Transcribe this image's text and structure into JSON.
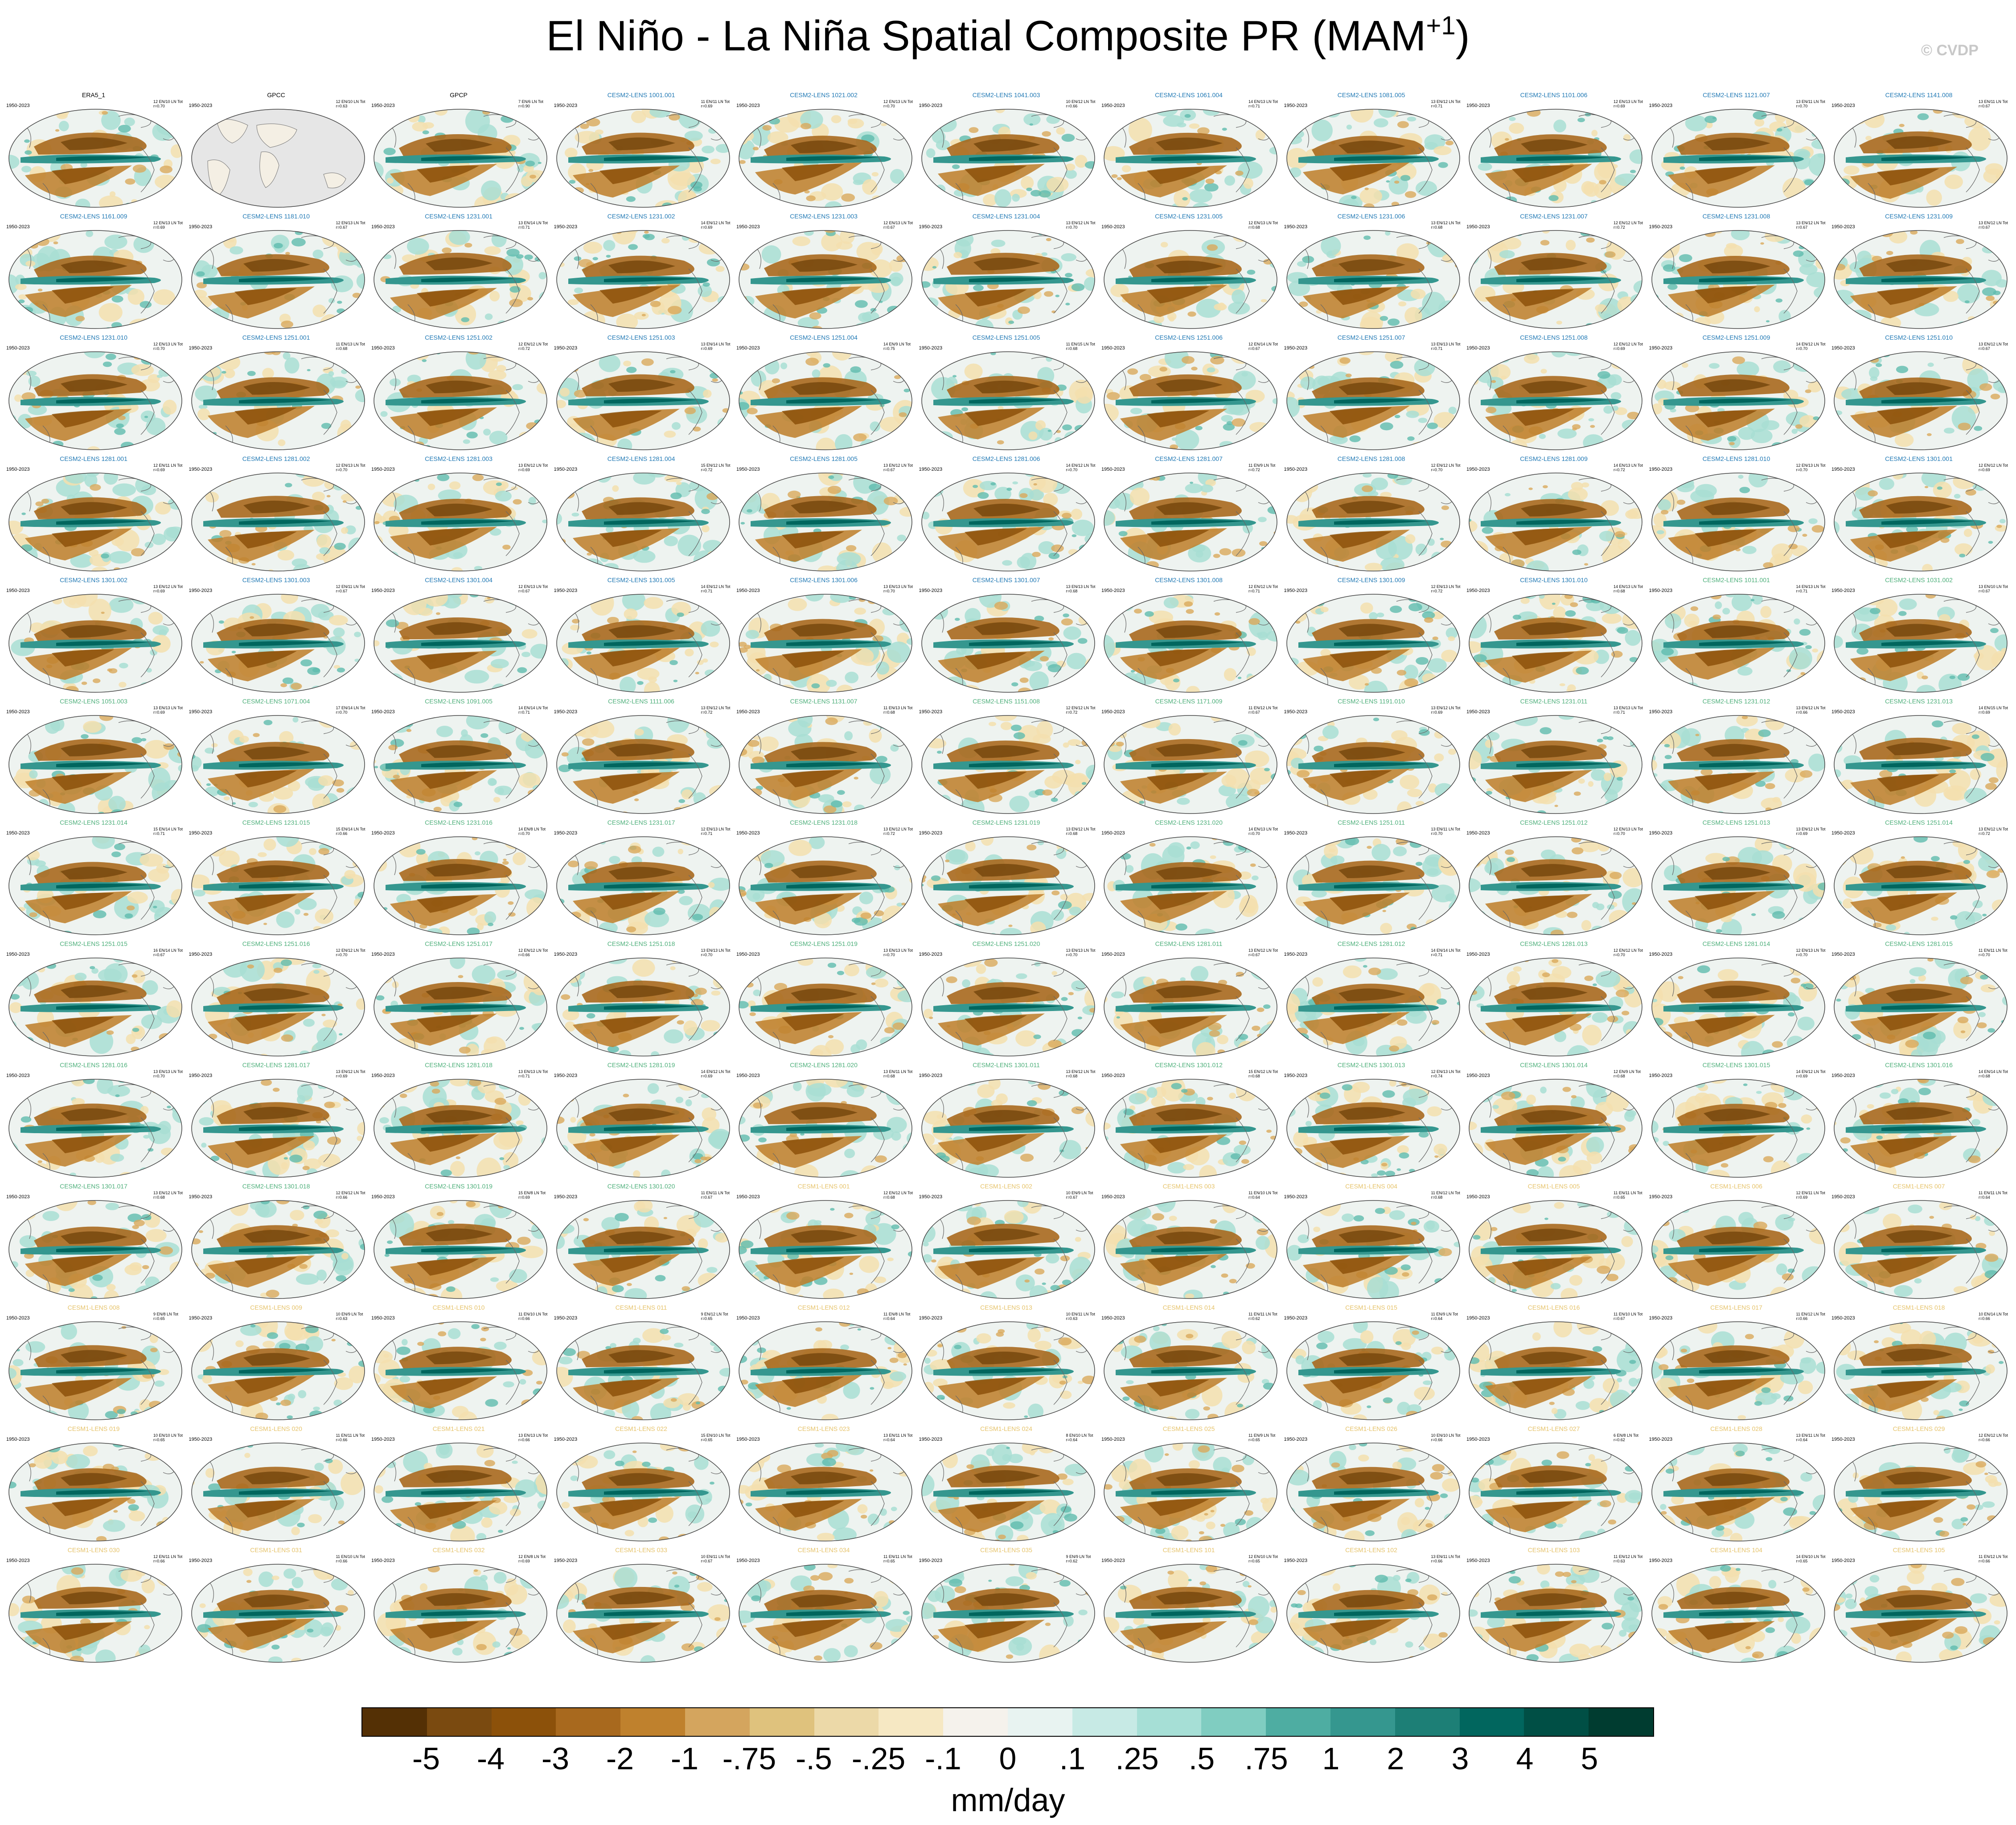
{
  "title": "El Niño - La Niña Spatial Composite PR (MAM",
  "title_superscript": "+1",
  "title_close": ")",
  "copyright": "© CVDP",
  "year_range": "1950-2023",
  "group_colors": {
    "obs": "#000000",
    "cesm2_smbb": "#1f78b4",
    "cesm2_cmip6": "#4daf7a",
    "cesm1": "#e6c36a"
  },
  "panels": [
    {
      "title": "ERA5_1",
      "group": "obs",
      "count": "12 EN/10 LN Tot",
      "r": "r=0.70"
    },
    {
      "title": "GPCC",
      "group": "obs",
      "count": "12 EN/10 LN Tot",
      "r": "r=0.63",
      "land_only": true
    },
    {
      "title": "GPCP",
      "group": "obs",
      "count": "7 EN/6 LN Tot",
      "r": "r=0.90"
    },
    {
      "title": "CESM2-LENS 1001.001",
      "group": "cesm2_smbb",
      "count": "11 EN/11 LN Tot",
      "r": "r=0.69"
    },
    {
      "title": "CESM2-LENS 1021.002",
      "group": "cesm2_smbb",
      "count": "12 EN/13 LN Tot",
      "r": "r=0.70"
    },
    {
      "title": "CESM2-LENS 1041.003",
      "group": "cesm2_smbb",
      "count": "10 EN/12 LN Tot",
      "r": "r=0.66"
    },
    {
      "title": "CESM2-LENS 1061.004",
      "group": "cesm2_smbb",
      "count": "14 EN/13 LN Tot",
      "r": "r=0.71"
    },
    {
      "title": "CESM2-LENS 1081.005",
      "group": "cesm2_smbb",
      "count": "13 EN/12 LN Tot",
      "r": "r=0.71"
    },
    {
      "title": "CESM2-LENS 1101.006",
      "group": "cesm2_smbb",
      "count": "12 EN/13 LN Tot",
      "r": "r=0.69"
    },
    {
      "title": "CESM2-LENS 1121.007",
      "group": "cesm2_smbb",
      "count": "13 EN/11 LN Tot",
      "r": "r=0.70"
    },
    {
      "title": "CESM2-LENS 1141.008",
      "group": "cesm2_smbb",
      "count": "13 EN/11 LN Tot",
      "r": "r=0.67"
    },
    {
      "title": "CESM2-LENS 1161.009",
      "group": "cesm2_smbb",
      "count": "12 EN/13 LN Tot",
      "r": "r=0.69"
    },
    {
      "title": "CESM2-LENS 1181.010",
      "group": "cesm2_smbb",
      "count": "12 EN/13 LN Tot",
      "r": "r=0.67"
    },
    {
      "title": "CESM2-LENS 1231.001",
      "group": "cesm2_smbb",
      "count": "13 EN/14 LN Tot",
      "r": "r=0.71"
    },
    {
      "title": "CESM2-LENS 1231.002",
      "group": "cesm2_smbb",
      "count": "14 EN/12 LN Tot",
      "r": "r=0.69"
    },
    {
      "title": "CESM2-LENS 1231.003",
      "group": "cesm2_smbb",
      "count": "12 EN/13 LN Tot",
      "r": "r=0.67"
    },
    {
      "title": "CESM2-LENS 1231.004",
      "group": "cesm2_smbb",
      "count": "13 EN/12 LN Tot",
      "r": "r=0.70"
    },
    {
      "title": "CESM2-LENS 1231.005",
      "group": "cesm2_smbb",
      "count": "12 EN/13 LN Tot",
      "r": "r=0.68"
    },
    {
      "title": "CESM2-LENS 1231.006",
      "group": "cesm2_smbb",
      "count": "13 EN/12 LN Tot",
      "r": "r=0.68"
    },
    {
      "title": "CESM2-LENS 1231.007",
      "group": "cesm2_smbb",
      "count": "12 EN/12 LN Tot",
      "r": "r=0.72"
    },
    {
      "title": "CESM2-LENS 1231.008",
      "group": "cesm2_smbb",
      "count": "13 EN/12 LN Tot",
      "r": "r=0.67"
    },
    {
      "title": "CESM2-LENS 1231.009",
      "group": "cesm2_smbb",
      "count": "13 EN/12 LN Tot",
      "r": "r=0.67"
    },
    {
      "title": "CESM2-LENS 1231.010",
      "group": "cesm2_smbb",
      "count": "12 EN/13 LN Tot",
      "r": "r=0.70"
    },
    {
      "title": "CESM2-LENS 1251.001",
      "group": "cesm2_smbb",
      "count": "11 EN/13 LN Tot",
      "r": "r=0.68"
    },
    {
      "title": "CESM2-LENS 1251.002",
      "group": "cesm2_smbb",
      "count": "12 EN/12 LN Tot",
      "r": "r=0.72"
    },
    {
      "title": "CESM2-LENS 1251.003",
      "group": "cesm2_smbb",
      "count": "13 EN/14 LN Tot",
      "r": "r=0.69"
    },
    {
      "title": "CESM2-LENS 1251.004",
      "group": "cesm2_smbb",
      "count": "14 EN/9 LN Tot",
      "r": "r=0.75"
    },
    {
      "title": "CESM2-LENS 1251.005",
      "group": "cesm2_smbb",
      "count": "11 EN/15 LN Tot",
      "r": "r=0.68"
    },
    {
      "title": "CESM2-LENS 1251.006",
      "group": "cesm2_smbb",
      "count": "12 EN/14 LN Tot",
      "r": "r=0.67"
    },
    {
      "title": "CESM2-LENS 1251.007",
      "group": "cesm2_smbb",
      "count": "13 EN/13 LN Tot",
      "r": "r=0.71"
    },
    {
      "title": "CESM2-LENS 1251.008",
      "group": "cesm2_smbb",
      "count": "12 EN/12 LN Tot",
      "r": "r=0.69"
    },
    {
      "title": "CESM2-LENS 1251.009",
      "group": "cesm2_smbb",
      "count": "14 EN/12 LN Tot",
      "r": "r=0.70"
    },
    {
      "title": "CESM2-LENS 1251.010",
      "group": "cesm2_smbb",
      "count": "13 EN/12 LN Tot",
      "r": "r=0.67"
    },
    {
      "title": "CESM2-LENS 1281.001",
      "group": "cesm2_smbb",
      "count": "12 EN/11 LN Tot",
      "r": "r=0.69"
    },
    {
      "title": "CESM2-LENS 1281.002",
      "group": "cesm2_smbb",
      "count": "12 EN/13 LN Tot",
      "r": "r=0.70"
    },
    {
      "title": "CESM2-LENS 1281.003",
      "group": "cesm2_smbb",
      "count": "13 EN/12 LN Tot",
      "r": "r=0.69"
    },
    {
      "title": "CESM2-LENS 1281.004",
      "group": "cesm2_smbb",
      "count": "15 EN/12 LN Tot",
      "r": "r=0.72"
    },
    {
      "title": "CESM2-LENS 1281.005",
      "group": "cesm2_smbb",
      "count": "13 EN/12 LN Tot",
      "r": "r=0.67"
    },
    {
      "title": "CESM2-LENS 1281.006",
      "group": "cesm2_smbb",
      "count": "14 EN/12 LN Tot",
      "r": "r=0.70"
    },
    {
      "title": "CESM2-LENS 1281.007",
      "group": "cesm2_smbb",
      "count": "11 EN/9 LN Tot",
      "r": "r=0.72"
    },
    {
      "title": "CESM2-LENS 1281.008",
      "group": "cesm2_smbb",
      "count": "12 EN/12 LN Tot",
      "r": "r=0.70"
    },
    {
      "title": "CESM2-LENS 1281.009",
      "group": "cesm2_smbb",
      "count": "14 EN/13 LN Tot",
      "r": "r=0.72"
    },
    {
      "title": "CESM2-LENS 1281.010",
      "group": "cesm2_smbb",
      "count": "12 EN/13 LN Tot",
      "r": "r=0.70"
    },
    {
      "title": "CESM2-LENS 1301.001",
      "group": "cesm2_smbb",
      "count": "12 EN/12 LN Tot",
      "r": "r=0.69"
    },
    {
      "title": "CESM2-LENS 1301.002",
      "group": "cesm2_smbb",
      "count": "13 EN/12 LN Tot",
      "r": "r=0.69"
    },
    {
      "title": "CESM2-LENS 1301.003",
      "group": "cesm2_smbb",
      "count": "12 EN/11 LN Tot",
      "r": "r=0.67"
    },
    {
      "title": "CESM2-LENS 1301.004",
      "group": "cesm2_smbb",
      "count": "12 EN/13 LN Tot",
      "r": "r=0.67"
    },
    {
      "title": "CESM2-LENS 1301.005",
      "group": "cesm2_smbb",
      "count": "14 EN/12 LN Tot",
      "r": "r=0.71"
    },
    {
      "title": "CESM2-LENS 1301.006",
      "group": "cesm2_smbb",
      "count": "13 EN/13 LN Tot",
      "r": "r=0.70"
    },
    {
      "title": "CESM2-LENS 1301.007",
      "group": "cesm2_smbb",
      "count": "13 EN/13 LN Tot",
      "r": "r=0.68"
    },
    {
      "title": "CESM2-LENS 1301.008",
      "group": "cesm2_smbb",
      "count": "12 EN/12 LN Tot",
      "r": "r=0.71"
    },
    {
      "title": "CESM2-LENS 1301.009",
      "group": "cesm2_smbb",
      "count": "12 EN/13 LN Tot",
      "r": "r=0.72"
    },
    {
      "title": "CESM2-LENS 1301.010",
      "group": "cesm2_smbb",
      "count": "14 EN/13 LN Tot",
      "r": "r=0.68"
    },
    {
      "title": "CESM2-LENS 1011.001",
      "group": "cesm2_cmip6",
      "count": "14 EN/13 LN Tot",
      "r": "r=0.71"
    },
    {
      "title": "CESM2-LENS 1031.002",
      "group": "cesm2_cmip6",
      "count": "13 EN/10 LN Tot",
      "r": "r=0.67"
    },
    {
      "title": "CESM2-LENS 1051.003",
      "group": "cesm2_cmip6",
      "count": "13 EN/13 LN Tot",
      "r": "r=0.69"
    },
    {
      "title": "CESM2-LENS 1071.004",
      "group": "cesm2_cmip6",
      "count": "17 EN/14 LN Tot",
      "r": "r=0.70"
    },
    {
      "title": "CESM2-LENS 1091.005",
      "group": "cesm2_cmip6",
      "count": "14 EN/14 LN Tot",
      "r": "r=0.71"
    },
    {
      "title": "CESM2-LENS 1111.006",
      "group": "cesm2_cmip6",
      "count": "13 EN/12 LN Tot",
      "r": "r=0.72"
    },
    {
      "title": "CESM2-LENS 1131.007",
      "group": "cesm2_cmip6",
      "count": "11 EN/13 LN Tot",
      "r": "r=0.68"
    },
    {
      "title": "CESM2-LENS 1151.008",
      "group": "cesm2_cmip6",
      "count": "12 EN/12 LN Tot",
      "r": "r=0.72"
    },
    {
      "title": "CESM2-LENS 1171.009",
      "group": "cesm2_cmip6",
      "count": "11 EN/12 LN Tot",
      "r": "r=0.67"
    },
    {
      "title": "CESM2-LENS 1191.010",
      "group": "cesm2_cmip6",
      "count": "13 EN/12 LN Tot",
      "r": "r=0.69"
    },
    {
      "title": "CESM2-LENS 1231.011",
      "group": "cesm2_cmip6",
      "count": "13 EN/13 LN Tot",
      "r": "r=0.71"
    },
    {
      "title": "CESM2-LENS 1231.012",
      "group": "cesm2_cmip6",
      "count": "13 EN/12 LN Tot",
      "r": "r=0.66"
    },
    {
      "title": "CESM2-LENS 1231.013",
      "group": "cesm2_cmip6",
      "count": "14 EN/15 LN Tot",
      "r": "r=0.69"
    },
    {
      "title": "CESM2-LENS 1231.014",
      "group": "cesm2_cmip6",
      "count": "15 EN/14 LN Tot",
      "r": "r=0.71"
    },
    {
      "title": "CESM2-LENS 1231.015",
      "group": "cesm2_cmip6",
      "count": "15 EN/14 LN Tot",
      "r": "r=0.66"
    },
    {
      "title": "CESM2-LENS 1231.016",
      "group": "cesm2_cmip6",
      "count": "14 EN/8 LN Tot",
      "r": "r=0.70"
    },
    {
      "title": "CESM2-LENS 1231.017",
      "group": "cesm2_cmip6",
      "count": "12 EN/13 LN Tot",
      "r": "r=0.71"
    },
    {
      "title": "CESM2-LENS 1231.018",
      "group": "cesm2_cmip6",
      "count": "13 EN/12 LN Tot",
      "r": "r=0.72"
    },
    {
      "title": "CESM2-LENS 1231.019",
      "group": "cesm2_cmip6",
      "count": "13 EN/12 LN Tot",
      "r": "r=0.68"
    },
    {
      "title": "CESM2-LENS 1231.020",
      "group": "cesm2_cmip6",
      "count": "14 EN/13 LN Tot",
      "r": "r=0.70"
    },
    {
      "title": "CESM2-LENS 1251.011",
      "group": "cesm2_cmip6",
      "count": "13 EN/11 LN Tot",
      "r": "r=0.70"
    },
    {
      "title": "CESM2-LENS 1251.012",
      "group": "cesm2_cmip6",
      "count": "12 EN/13 LN Tot",
      "r": "r=0.70"
    },
    {
      "title": "CESM2-LENS 1251.013",
      "group": "cesm2_cmip6",
      "count": "13 EN/12 LN Tot",
      "r": "r=0.69"
    },
    {
      "title": "CESM2-LENS 1251.014",
      "group": "cesm2_cmip6",
      "count": "13 EN/12 LN Tot",
      "r": "r=0.72"
    },
    {
      "title": "CESM2-LENS 1251.015",
      "group": "cesm2_cmip6",
      "count": "16 EN/14 LN Tot",
      "r": "r=0.67"
    },
    {
      "title": "CESM2-LENS 1251.016",
      "group": "cesm2_cmip6",
      "count": "12 EN/12 LN Tot",
      "r": "r=0.70"
    },
    {
      "title": "CESM2-LENS 1251.017",
      "group": "cesm2_cmip6",
      "count": "12 EN/12 LN Tot",
      "r": "r=0.66"
    },
    {
      "title": "CESM2-LENS 1251.018",
      "group": "cesm2_cmip6",
      "count": "13 EN/13 LN Tot",
      "r": "r=0.70"
    },
    {
      "title": "CESM2-LENS 1251.019",
      "group": "cesm2_cmip6",
      "count": "13 EN/13 LN Tot",
      "r": "r=0.70"
    },
    {
      "title": "CESM2-LENS 1251.020",
      "group": "cesm2_cmip6",
      "count": "13 EN/13 LN Tot",
      "r": "r=0.70"
    },
    {
      "title": "CESM2-LENS 1281.011",
      "group": "cesm2_cmip6",
      "count": "13 EN/12 LN Tot",
      "r": "r=0.67"
    },
    {
      "title": "CESM2-LENS 1281.012",
      "group": "cesm2_cmip6",
      "count": "14 EN/14 LN Tot",
      "r": "r=0.71"
    },
    {
      "title": "CESM2-LENS 1281.013",
      "group": "cesm2_cmip6",
      "count": "12 EN/12 LN Tot",
      "r": "r=0.70"
    },
    {
      "title": "CESM2-LENS 1281.014",
      "group": "cesm2_cmip6",
      "count": "12 EN/13 LN Tot",
      "r": "r=0.70"
    },
    {
      "title": "CESM2-LENS 1281.015",
      "group": "cesm2_cmip6",
      "count": "11 EN/11 LN Tot",
      "r": "r=0.70"
    },
    {
      "title": "CESM2-LENS 1281.016",
      "group": "cesm2_cmip6",
      "count": "13 EN/13 LN Tot",
      "r": "r=0.70"
    },
    {
      "title": "CESM2-LENS 1281.017",
      "group": "cesm2_cmip6",
      "count": "13 EN/12 LN Tot",
      "r": "r=0.69"
    },
    {
      "title": "CESM2-LENS 1281.018",
      "group": "cesm2_cmip6",
      "count": "13 EN/13 LN Tot",
      "r": "r=0.71"
    },
    {
      "title": "CESM2-LENS 1281.019",
      "group": "cesm2_cmip6",
      "count": "14 EN/12 LN Tot",
      "r": "r=0.69"
    },
    {
      "title": "CESM2-LENS 1281.020",
      "group": "cesm2_cmip6",
      "count": "13 EN/11 LN Tot",
      "r": "r=0.68"
    },
    {
      "title": "CESM2-LENS 1301.011",
      "group": "cesm2_cmip6",
      "count": "13 EN/12 LN Tot",
      "r": "r=0.68"
    },
    {
      "title": "CESM2-LENS 1301.012",
      "group": "cesm2_cmip6",
      "count": "15 EN/12 LN Tot",
      "r": "r=0.68"
    },
    {
      "title": "CESM2-LENS 1301.013",
      "group": "cesm2_cmip6",
      "count": "12 EN/13 LN Tot",
      "r": "r=0.74"
    },
    {
      "title": "CESM2-LENS 1301.014",
      "group": "cesm2_cmip6",
      "count": "12 EN/9 LN Tot",
      "r": "r=0.68"
    },
    {
      "title": "CESM2-LENS 1301.015",
      "group": "cesm2_cmip6",
      "count": "14 EN/12 LN Tot",
      "r": "r=0.69"
    },
    {
      "title": "CESM2-LENS 1301.016",
      "group": "cesm2_cmip6",
      "count": "14 EN/14 LN Tot",
      "r": "r=0.68"
    },
    {
      "title": "CESM2-LENS 1301.017",
      "group": "cesm2_cmip6",
      "count": "13 EN/12 LN Tot",
      "r": "r=0.68"
    },
    {
      "title": "CESM2-LENS 1301.018",
      "group": "cesm2_cmip6",
      "count": "12 EN/12 LN Tot",
      "r": "r=0.66"
    },
    {
      "title": "CESM2-LENS 1301.019",
      "group": "cesm2_cmip6",
      "count": "15 EN/8 LN Tot",
      "r": "r=0.69"
    },
    {
      "title": "CESM2-LENS 1301.020",
      "group": "cesm2_cmip6",
      "count": "11 EN/11 LN Tot",
      "r": "r=0.67"
    },
    {
      "title": "CESM1-LENS 001",
      "group": "cesm1",
      "count": "12 EN/12 LN Tot",
      "r": "r=0.68"
    },
    {
      "title": "CESM1-LENS 002",
      "group": "cesm1",
      "count": "10 EN/9 LN Tot",
      "r": "r=0.67"
    },
    {
      "title": "CESM1-LENS 003",
      "group": "cesm1",
      "count": "11 EN/10 LN Tot",
      "r": "r=0.64"
    },
    {
      "title": "CESM1-LENS 004",
      "group": "cesm1",
      "count": "11 EN/12 LN Tot",
      "r": "r=0.68"
    },
    {
      "title": "CESM1-LENS 005",
      "group": "cesm1",
      "count": "11 EN/11 LN Tot",
      "r": "r=0.65"
    },
    {
      "title": "CESM1-LENS 006",
      "group": "cesm1",
      "count": "12 EN/11 LN Tot",
      "r": "r=0.69"
    },
    {
      "title": "CESM1-LENS 007",
      "group": "cesm1",
      "count": "11 EN/11 LN Tot",
      "r": "r=0.64"
    },
    {
      "title": "CESM1-LENS 008",
      "group": "cesm1",
      "count": "9 EN/8 LN Tot",
      "r": "r=0.65"
    },
    {
      "title": "CESM1-LENS 009",
      "group": "cesm1",
      "count": "10 EN/9 LN Tot",
      "r": "r=0.63"
    },
    {
      "title": "CESM1-LENS 010",
      "group": "cesm1",
      "count": "11 EN/10 LN Tot",
      "r": "r=0.66"
    },
    {
      "title": "CESM1-LENS 011",
      "group": "cesm1",
      "count": "9 EN/12 LN Tot",
      "r": "r=0.65"
    },
    {
      "title": "CESM1-LENS 012",
      "group": "cesm1",
      "count": "11 EN/8 LN Tot",
      "r": "r=0.64"
    },
    {
      "title": "CESM1-LENS 013",
      "group": "cesm1",
      "count": "10 EN/11 LN Tot",
      "r": "r=0.63"
    },
    {
      "title": "CESM1-LENS 014",
      "group": "cesm1",
      "count": "11 EN/11 LN Tot",
      "r": "r=0.62"
    },
    {
      "title": "CESM1-LENS 015",
      "group": "cesm1",
      "count": "11 EN/9 LN Tot",
      "r": "r=0.64"
    },
    {
      "title": "CESM1-LENS 016",
      "group": "cesm1",
      "count": "11 EN/10 LN Tot",
      "r": "r=0.67"
    },
    {
      "title": "CESM1-LENS 017",
      "group": "cesm1",
      "count": "11 EN/12 LN Tot",
      "r": "r=0.66"
    },
    {
      "title": "CESM1-LENS 018",
      "group": "cesm1",
      "count": "10 EN/14 LN Tot",
      "r": "r=0.66"
    },
    {
      "title": "CESM1-LENS 019",
      "group": "cesm1",
      "count": "10 EN/10 LN Tot",
      "r": "r=0.65"
    },
    {
      "title": "CESM1-LENS 020",
      "group": "cesm1",
      "count": "11 EN/11 LN Tot",
      "r": "r=0.66"
    },
    {
      "title": "CESM1-LENS 021",
      "group": "cesm1",
      "count": "13 EN/13 LN Tot",
      "r": "r=0.66"
    },
    {
      "title": "CESM1-LENS 022",
      "group": "cesm1",
      "count": "15 EN/10 LN Tot",
      "r": "r=0.65"
    },
    {
      "title": "CESM1-LENS 023",
      "group": "cesm1",
      "count": "13 EN/11 LN Tot",
      "r": "r=0.64"
    },
    {
      "title": "CESM1-LENS 024",
      "group": "cesm1",
      "count": "8 EN/10 LN Tot",
      "r": "r=0.64"
    },
    {
      "title": "CESM1-LENS 025",
      "group": "cesm1",
      "count": "11 EN/9 LN Tot",
      "r": "r=0.65"
    },
    {
      "title": "CESM1-LENS 026",
      "group": "cesm1",
      "count": "10 EN/10 LN Tot",
      "r": "r=0.66"
    },
    {
      "title": "CESM1-LENS 027",
      "group": "cesm1",
      "count": "6 EN/8 LN Tot",
      "r": "r=0.62"
    },
    {
      "title": "CESM1-LENS 028",
      "group": "cesm1",
      "count": "13 EN/11 LN Tot",
      "r": "r=0.64"
    },
    {
      "title": "CESM1-LENS 029",
      "group": "cesm1",
      "count": "12 EN/12 LN Tot",
      "r": "r=0.66"
    },
    {
      "title": "CESM1-LENS 030",
      "group": "cesm1",
      "count": "12 EN/11 LN Tot",
      "r": "r=0.66"
    },
    {
      "title": "CESM1-LENS 031",
      "group": "cesm1",
      "count": "11 EN/10 LN Tot",
      "r": "r=0.66"
    },
    {
      "title": "CESM1-LENS 032",
      "group": "cesm1",
      "count": "12 EN/8 LN Tot",
      "r": "r=0.69"
    },
    {
      "title": "CESM1-LENS 033",
      "group": "cesm1",
      "count": "10 EN/11 LN Tot",
      "r": "r=0.67"
    },
    {
      "title": "CESM1-LENS 034",
      "group": "cesm1",
      "count": "11 EN/11 LN Tot",
      "r": "r=0.65"
    },
    {
      "title": "CESM1-LENS 035",
      "group": "cesm1",
      "count": "9 EN/9 LN Tot",
      "r": "r=0.62"
    },
    {
      "title": "CESM1-LENS 101",
      "group": "cesm1",
      "count": "12 EN/10 LN Tot",
      "r": "r=0.65"
    },
    {
      "title": "CESM1-LENS 102",
      "group": "cesm1",
      "count": "13 EN/11 LN Tot",
      "r": "r=0.66"
    },
    {
      "title": "CESM1-LENS 103",
      "group": "cesm1",
      "count": "11 EN/12 LN Tot",
      "r": "r=0.63"
    },
    {
      "title": "CESM1-LENS 104",
      "group": "cesm1",
      "count": "14 EN/10 LN Tot",
      "r": "r=0.65"
    },
    {
      "title": "CESM1-LENS 105",
      "group": "cesm1",
      "count": "11 EN/12 LN Tot",
      "r": "r=0.66"
    }
  ],
  "colorbar": {
    "colors": [
      "#543005",
      "#7a4a10",
      "#8c510a",
      "#a8691e",
      "#bf812d",
      "#d4a55e",
      "#dfc27d",
      "#ecd9a8",
      "#f6e8c3",
      "#f5f2ec",
      "#e8f3f1",
      "#c7eae5",
      "#a6dfd6",
      "#80cdc1",
      "#4eada2",
      "#35978f",
      "#1d7f76",
      "#01665e",
      "#004f45",
      "#003c30"
    ],
    "labels": [
      "-5",
      "-4",
      "-3",
      "-2",
      "-1",
      "-.75",
      "-.5",
      "-.25",
      "-.1",
      "0",
      ".1",
      ".25",
      ".5",
      ".75",
      "1",
      "2",
      "3",
      "4",
      "5"
    ],
    "units": "mm/day"
  }
}
